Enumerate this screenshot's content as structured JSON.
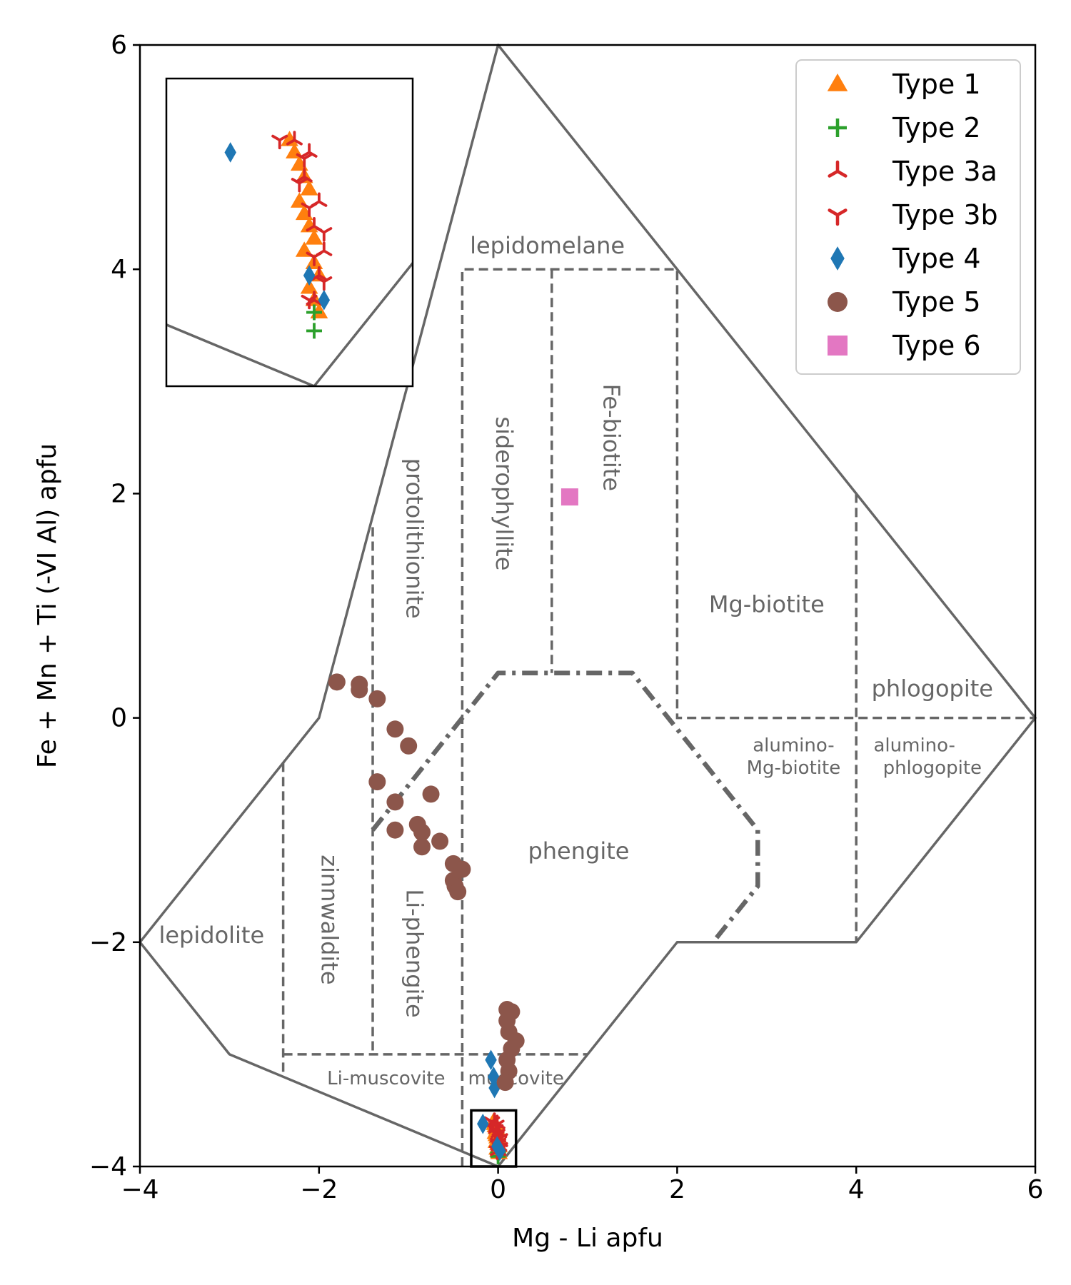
{
  "chart_data": {
    "type": "scatter",
    "xlabel": "Mg - Li apfu",
    "ylabel": "Fe + Mn + Ti (-VI Al) apfu",
    "xlim": [
      -4,
      6
    ],
    "ylim": [
      -4,
      6
    ],
    "xticks": [
      -4,
      -2,
      0,
      2,
      4,
      6
    ],
    "yticks": [
      -4,
      -2,
      0,
      2,
      4,
      6
    ],
    "xtick_labels": [
      "−4",
      "−2",
      "0",
      "2",
      "4",
      "6"
    ],
    "ytick_labels": [
      "−4",
      "−2",
      "0",
      "2",
      "4",
      "6"
    ],
    "grid": false,
    "legend_position": "top-right",
    "colors": {
      "boundary": "#666666",
      "type1": "#ff7f0e",
      "type2": "#2ca02c",
      "type3": "#d62728",
      "type4": "#1f77b4",
      "type5": "#8c564b",
      "type6": "#e377c2"
    },
    "boundaries": {
      "solid": [
        [
          [
            -4,
            -2
          ],
          [
            -2,
            0
          ],
          [
            0,
            6
          ],
          [
            6,
            0
          ],
          [
            4,
            -2
          ],
          [
            2,
            -2
          ],
          [
            0,
            -4
          ],
          [
            -3,
            -3
          ],
          [
            -4,
            -2
          ]
        ]
      ],
      "dashed": [
        [
          [
            -2.4,
            -0.4
          ],
          [
            -2.4,
            -3.2
          ]
        ],
        [
          [
            -2.4,
            -3
          ],
          [
            1,
            -3
          ]
        ],
        [
          [
            -1.4,
            1.7
          ],
          [
            -1.4,
            -3
          ]
        ],
        [
          [
            -0.4,
            -4
          ],
          [
            -0.4,
            4
          ],
          [
            2,
            4
          ],
          [
            2,
            0
          ],
          [
            6,
            0
          ]
        ],
        [
          [
            0.6,
            4
          ],
          [
            0.6,
            0.4
          ]
        ],
        [
          [
            4,
            2
          ],
          [
            4,
            -2
          ]
        ]
      ],
      "dashdot": [
        [
          [
            -1.4,
            -1
          ],
          [
            0,
            0.4
          ],
          [
            1.5,
            0.4
          ],
          [
            2.9,
            -1
          ],
          [
            2.9,
            -1.5
          ],
          [
            2.4,
            -2
          ]
        ]
      ],
      "inset_box": [
        [
          -0.3,
          -4
        ],
        [
          0.2,
          -3.5
        ]
      ]
    },
    "region_labels": [
      {
        "text": "lepidomelane",
        "x": 0.55,
        "y": 4.2,
        "rotate": false,
        "small": false
      },
      {
        "text": "protolithionite",
        "x": -0.95,
        "y": 1.6,
        "rotate": true,
        "small": false
      },
      {
        "text": "siderophyllite",
        "x": 0.05,
        "y": 2.0,
        "rotate": true,
        "small": false
      },
      {
        "text": "Fe-biotite",
        "x": 1.25,
        "y": 2.5,
        "rotate": true,
        "small": false
      },
      {
        "text": "Mg-biotite",
        "x": 3.0,
        "y": 1.0,
        "rotate": false,
        "small": false
      },
      {
        "text": "phlogopite",
        "x": 4.85,
        "y": 0.25,
        "rotate": false,
        "small": false
      },
      {
        "text": "alumino-",
        "x": 3.3,
        "y": -0.25,
        "rotate": false,
        "small": true
      },
      {
        "text": "Mg-biotite",
        "x": 3.3,
        "y": -0.45,
        "rotate": false,
        "small": true
      },
      {
        "text": "alumino-",
        "x": 4.65,
        "y": -0.25,
        "rotate": false,
        "small": true
      },
      {
        "text": "phlogopite",
        "x": 4.85,
        "y": -0.45,
        "rotate": false,
        "small": true
      },
      {
        "text": "phengite",
        "x": 0.9,
        "y": -1.2,
        "rotate": false,
        "small": false
      },
      {
        "text": "zinnwaldite",
        "x": -1.9,
        "y": -1.8,
        "rotate": true,
        "small": false
      },
      {
        "text": "Li-phengite",
        "x": -0.95,
        "y": -2.1,
        "rotate": true,
        "small": false
      },
      {
        "text": "lepidolite",
        "x": -3.2,
        "y": -1.95,
        "rotate": false,
        "small": false
      },
      {
        "text": "Li-muscovite",
        "x": -1.25,
        "y": -3.22,
        "rotate": false,
        "small": true
      },
      {
        "text": "muscovite",
        "x": 0.2,
        "y": -3.22,
        "rotate": false,
        "small": true
      }
    ],
    "series": [
      {
        "name": "Type 1",
        "marker": "triangle",
        "color": "#ff7f0e",
        "points": [
          [
            -0.05,
            -3.6
          ],
          [
            -0.04,
            -3.62
          ],
          [
            -0.03,
            -3.64
          ],
          [
            -0.02,
            -3.66
          ],
          [
            -0.01,
            -3.68
          ],
          [
            -0.03,
            -3.7
          ],
          [
            -0.02,
            -3.72
          ],
          [
            -0.01,
            -3.74
          ],
          [
            0.0,
            -3.76
          ],
          [
            -0.02,
            -3.78
          ],
          [
            0.0,
            -3.8
          ],
          [
            0.01,
            -3.82
          ],
          [
            -0.01,
            -3.84
          ],
          [
            0.0,
            -3.86
          ],
          [
            0.01,
            -3.88
          ]
        ]
      },
      {
        "name": "Type 2",
        "marker": "plus",
        "color": "#2ca02c",
        "points": [
          [
            0.0,
            -3.88
          ],
          [
            0.0,
            -3.91
          ]
        ]
      },
      {
        "name": "Type 3a",
        "marker": "tri-up",
        "color": "#d62728",
        "points": [
          [
            -0.04,
            -3.6
          ],
          [
            -0.01,
            -3.62
          ],
          [
            -0.02,
            -3.66
          ],
          [
            0.01,
            -3.7
          ],
          [
            0.0,
            -3.74
          ],
          [
            0.02,
            -3.78
          ],
          [
            0.01,
            -3.82
          ],
          [
            0.0,
            -3.86
          ]
        ]
      },
      {
        "name": "Type 3b",
        "marker": "tri-down",
        "color": "#d62728",
        "points": [
          [
            -0.07,
            -3.6
          ],
          [
            -0.02,
            -3.63
          ],
          [
            -0.03,
            -3.67
          ],
          [
            -0.01,
            -3.71
          ],
          [
            0.02,
            -3.75
          ],
          [
            0.0,
            -3.79
          ],
          [
            0.02,
            -3.83
          ],
          [
            -0.01,
            -3.86
          ]
        ]
      },
      {
        "name": "Type 4",
        "marker": "diamond",
        "color": "#1f77b4",
        "points": [
          [
            -0.08,
            -3.05
          ],
          [
            -0.05,
            -3.2
          ],
          [
            -0.04,
            -3.3
          ],
          [
            -0.17,
            -3.62
          ],
          [
            -0.01,
            -3.82
          ],
          [
            0.02,
            -3.86
          ]
        ]
      },
      {
        "name": "Type 5",
        "marker": "circle",
        "color": "#8c564b",
        "points": [
          [
            -1.8,
            0.32
          ],
          [
            -1.55,
            0.3
          ],
          [
            -1.55,
            0.25
          ],
          [
            -1.35,
            0.17
          ],
          [
            -1.15,
            -0.1
          ],
          [
            -1.0,
            -0.25
          ],
          [
            -1.35,
            -0.57
          ],
          [
            -1.15,
            -0.75
          ],
          [
            -0.75,
            -0.68
          ],
          [
            -1.15,
            -1.0
          ],
          [
            -0.9,
            -0.95
          ],
          [
            -0.85,
            -1.02
          ],
          [
            -0.85,
            -1.15
          ],
          [
            -0.65,
            -1.1
          ],
          [
            -0.5,
            -1.3
          ],
          [
            -0.4,
            -1.35
          ],
          [
            -0.5,
            -1.45
          ],
          [
            -0.48,
            -1.5
          ],
          [
            -0.45,
            -1.55
          ],
          [
            0.1,
            -2.6
          ],
          [
            0.15,
            -2.62
          ],
          [
            0.1,
            -2.7
          ],
          [
            0.12,
            -2.8
          ],
          [
            0.2,
            -2.88
          ],
          [
            0.15,
            -2.95
          ],
          [
            0.1,
            -3.05
          ],
          [
            0.12,
            -3.15
          ],
          [
            0.08,
            -3.25
          ]
        ]
      },
      {
        "name": "Type 6",
        "marker": "square",
        "color": "#e377c2",
        "points": [
          [
            0.8,
            1.97
          ]
        ]
      }
    ]
  }
}
